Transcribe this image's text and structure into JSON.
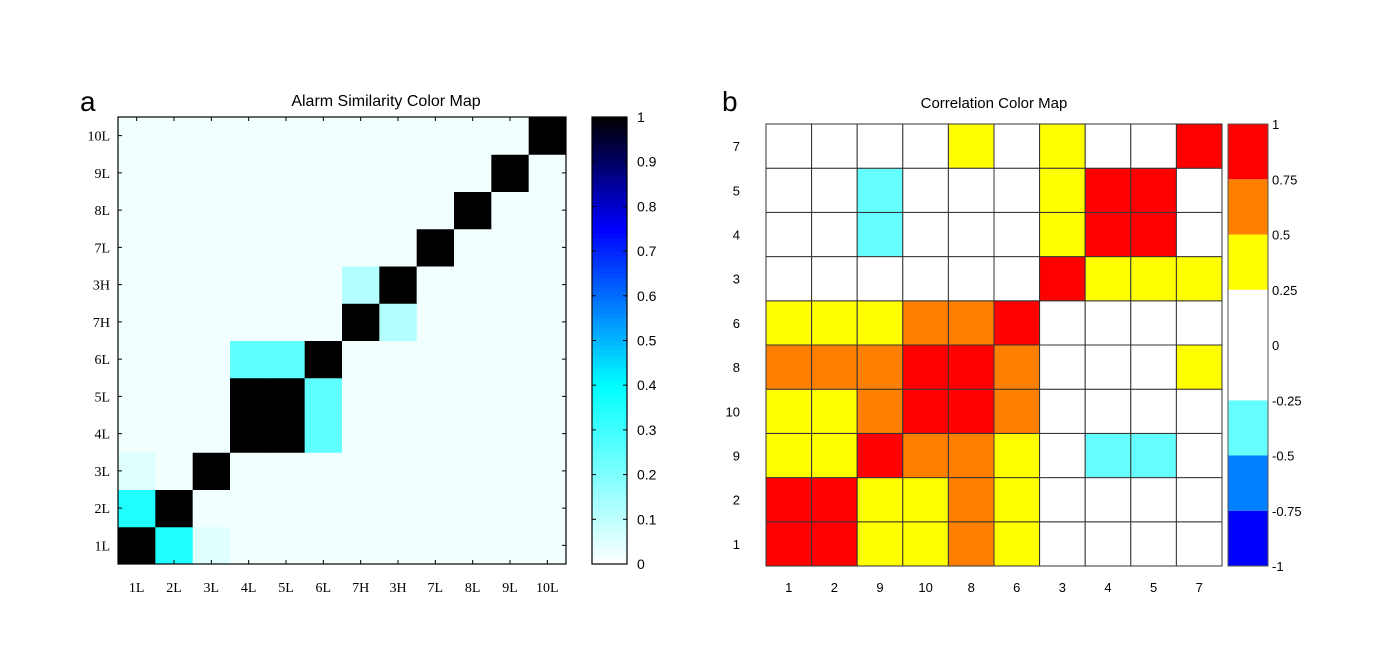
{
  "chart_data": [
    {
      "panel_label": "a",
      "type": "heatmap",
      "title": "Alarm Similarity Color Map",
      "x_categories": [
        "1L",
        "2L",
        "3L",
        "4L",
        "5L",
        "6L",
        "7H",
        "3H",
        "7L",
        "8L",
        "9L",
        "10L"
      ],
      "y_categories_bottom_to_top": [
        "1L",
        "2L",
        "3L",
        "4L",
        "5L",
        "6L",
        "7H",
        "3H",
        "7L",
        "8L",
        "9L",
        "10L"
      ],
      "matrix_rows_bottom_to_top": [
        [
          1,
          0.35,
          0.05,
          0.02,
          0.02,
          0.02,
          0.02,
          0.02,
          0.02,
          0.02,
          0.02,
          0.02
        ],
        [
          0.35,
          1,
          0.02,
          0.02,
          0.02,
          0.02,
          0.02,
          0.02,
          0.02,
          0.02,
          0.02,
          0.02
        ],
        [
          0.05,
          0.02,
          1,
          0.02,
          0.02,
          0.02,
          0.02,
          0.02,
          0.02,
          0.02,
          0.02,
          0.02
        ],
        [
          0.02,
          0.02,
          0.02,
          1,
          1,
          0.25,
          0.02,
          0.02,
          0.02,
          0.02,
          0.02,
          0.02
        ],
        [
          0.02,
          0.02,
          0.02,
          1,
          1,
          0.25,
          0.02,
          0.02,
          0.02,
          0.02,
          0.02,
          0.02
        ],
        [
          0.02,
          0.02,
          0.02,
          0.25,
          0.25,
          1,
          0.02,
          0.02,
          0.02,
          0.02,
          0.02,
          0.02
        ],
        [
          0.02,
          0.02,
          0.02,
          0.02,
          0.02,
          0.02,
          1,
          0.12,
          0.02,
          0.02,
          0.02,
          0.02
        ],
        [
          0.02,
          0.02,
          0.02,
          0.02,
          0.02,
          0.02,
          0.12,
          1,
          0.02,
          0.02,
          0.02,
          0.02
        ],
        [
          0.02,
          0.02,
          0.02,
          0.02,
          0.02,
          0.02,
          0.02,
          0.02,
          1,
          0.02,
          0.02,
          0.02
        ],
        [
          0.02,
          0.02,
          0.02,
          0.02,
          0.02,
          0.02,
          0.02,
          0.02,
          0.02,
          1,
          0.02,
          0.02
        ],
        [
          0.02,
          0.02,
          0.02,
          0.02,
          0.02,
          0.02,
          0.02,
          0.02,
          0.02,
          0.02,
          1,
          0.02
        ],
        [
          0.02,
          0.02,
          0.02,
          0.02,
          0.02,
          0.02,
          0.02,
          0.02,
          0.02,
          0.02,
          0.02,
          1
        ]
      ],
      "colorbar": {
        "range": [
          0,
          1
        ],
        "ticks": [
          "0",
          "0.1",
          "0.2",
          "0.3",
          "0.4",
          "0.5",
          "0.6",
          "0.7",
          "0.8",
          "0.9",
          "1"
        ],
        "colormap_stops": [
          {
            "value": 0,
            "color": "#ffffff"
          },
          {
            "value": 0.4,
            "color": "#00ffff"
          },
          {
            "value": 0.75,
            "color": "#0000ff"
          },
          {
            "value": 1,
            "color": "#000000"
          }
        ]
      }
    },
    {
      "panel_label": "b",
      "type": "heatmap",
      "title": "Correlation Color Map",
      "x_categories": [
        "1",
        "2",
        "9",
        "10",
        "8",
        "6",
        "3",
        "4",
        "5",
        "7"
      ],
      "y_categories_bottom_to_top": [
        "1",
        "2",
        "9",
        "10",
        "8",
        "6",
        "3",
        "4",
        "5",
        "7"
      ],
      "matrix_rows_bottom_to_top": [
        [
          1,
          0.875,
          0.375,
          0.375,
          0.625,
          0.375,
          0,
          0,
          0,
          0
        ],
        [
          0.875,
          1,
          0.375,
          0.375,
          0.625,
          0.375,
          0,
          0,
          0,
          0
        ],
        [
          0.375,
          0.375,
          1,
          0.625,
          0.625,
          0.375,
          0,
          -0.375,
          -0.375,
          0
        ],
        [
          0.375,
          0.375,
          0.625,
          1,
          0.875,
          0.625,
          0,
          0,
          0,
          0
        ],
        [
          0.625,
          0.625,
          0.625,
          0.875,
          1,
          0.625,
          0,
          0,
          0,
          0.375
        ],
        [
          0.375,
          0.375,
          0.375,
          0.625,
          0.625,
          1,
          0,
          0,
          0,
          0
        ],
        [
          0,
          0,
          0,
          0,
          0,
          0,
          1,
          0.375,
          0.375,
          0.375
        ],
        [
          0,
          0,
          -0.375,
          0,
          0,
          0,
          0.375,
          1,
          0.875,
          0
        ],
        [
          0,
          0,
          -0.375,
          0,
          0,
          0,
          0.375,
          0.875,
          1,
          0
        ],
        [
          0,
          0,
          0,
          0,
          0.375,
          0,
          0.375,
          0,
          0,
          1
        ]
      ],
      "colorbar": {
        "range": [
          -1,
          1
        ],
        "ticks": [
          "-1",
          "-0.75",
          "-0.5",
          "-0.25",
          "0",
          "0.25",
          "0.5",
          "0.75",
          "1"
        ],
        "bins": [
          {
            "from": -1,
            "to": -0.75,
            "color": "#0000ff"
          },
          {
            "from": -0.75,
            "to": -0.5,
            "color": "#0080ff"
          },
          {
            "from": -0.5,
            "to": -0.25,
            "color": "#66ffff"
          },
          {
            "from": -0.25,
            "to": 0.25,
            "color": "#ffffff"
          },
          {
            "from": 0.25,
            "to": 0.5,
            "color": "#ffff00"
          },
          {
            "from": 0.5,
            "to": 0.75,
            "color": "#ff8000"
          },
          {
            "from": 0.75,
            "to": 1,
            "color": "#ff0000"
          }
        ]
      }
    }
  ]
}
